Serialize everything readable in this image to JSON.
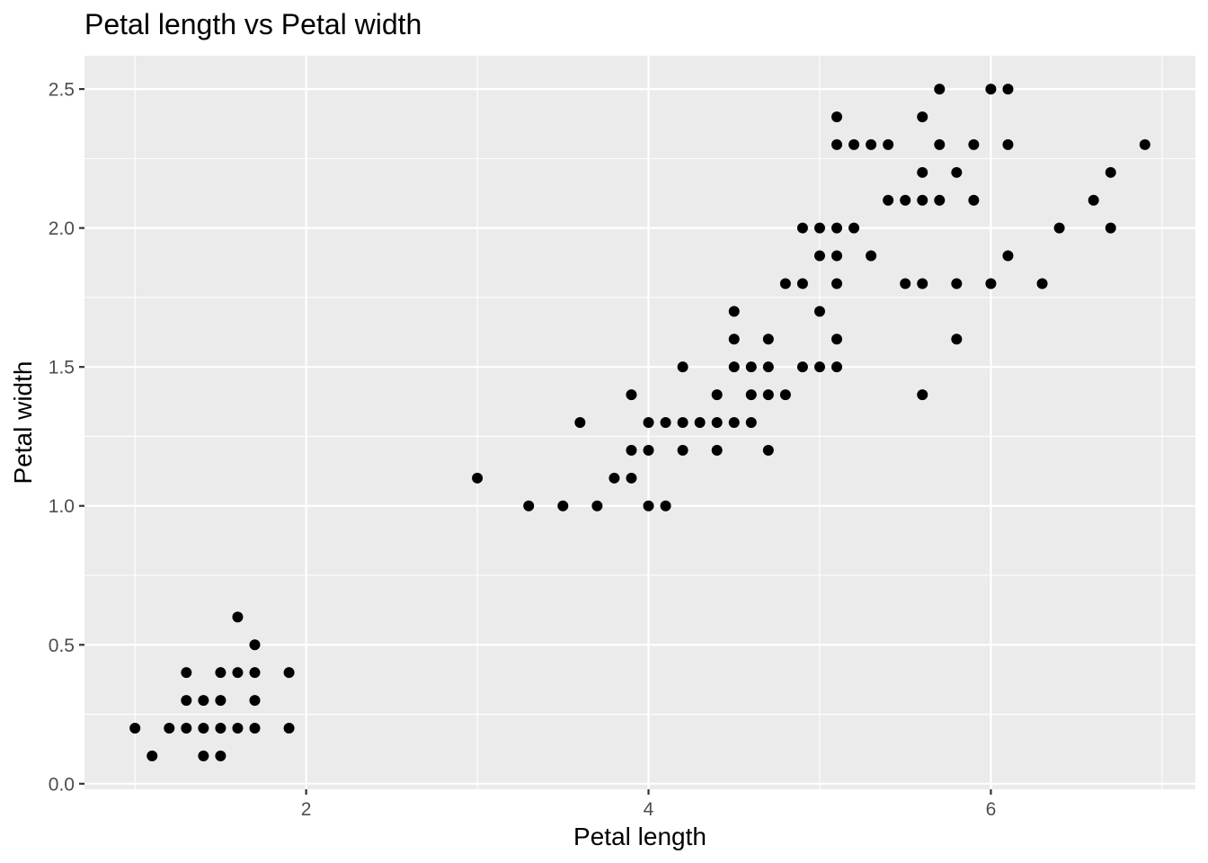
{
  "chart_data": {
    "type": "scatter",
    "title": "Petal length vs Petal width",
    "xlabel": "Petal length",
    "ylabel": "Petal width",
    "xlim": [
      0.705,
      7.195
    ],
    "ylim": [
      -0.02,
      2.62
    ],
    "x_ticks": [
      2,
      4,
      6
    ],
    "x_tick_labels": [
      "2",
      "4",
      "6"
    ],
    "y_ticks": [
      0,
      0.5,
      1,
      1.5,
      2,
      2.5
    ],
    "y_tick_labels": [
      "0.0",
      "0.5",
      "1.0",
      "1.5",
      "2.0",
      "2.5"
    ],
    "grid": true,
    "colors": {
      "panel": "#ebebeb",
      "grid": "#ffffff",
      "point": "#000000",
      "tick_text": "#4d4d4d"
    },
    "points": [
      [
        1.0,
        0.2
      ],
      [
        1.1,
        0.1
      ],
      [
        1.2,
        0.2
      ],
      [
        1.3,
        0.2
      ],
      [
        1.3,
        0.3
      ],
      [
        1.3,
        0.4
      ],
      [
        1.4,
        0.1
      ],
      [
        1.4,
        0.2
      ],
      [
        1.4,
        0.3
      ],
      [
        1.5,
        0.1
      ],
      [
        1.5,
        0.2
      ],
      [
        1.5,
        0.3
      ],
      [
        1.5,
        0.4
      ],
      [
        1.6,
        0.2
      ],
      [
        1.6,
        0.4
      ],
      [
        1.6,
        0.6
      ],
      [
        1.7,
        0.2
      ],
      [
        1.7,
        0.3
      ],
      [
        1.7,
        0.4
      ],
      [
        1.7,
        0.5
      ],
      [
        1.9,
        0.2
      ],
      [
        1.9,
        0.4
      ],
      [
        3.0,
        1.1
      ],
      [
        3.3,
        1.0
      ],
      [
        3.5,
        1.0
      ],
      [
        3.6,
        1.3
      ],
      [
        3.7,
        1.0
      ],
      [
        3.8,
        1.1
      ],
      [
        3.9,
        1.1
      ],
      [
        3.9,
        1.2
      ],
      [
        3.9,
        1.4
      ],
      [
        4.0,
        1.0
      ],
      [
        4.0,
        1.2
      ],
      [
        4.0,
        1.3
      ],
      [
        4.1,
        1.0
      ],
      [
        4.1,
        1.3
      ],
      [
        4.2,
        1.2
      ],
      [
        4.2,
        1.3
      ],
      [
        4.2,
        1.5
      ],
      [
        4.3,
        1.3
      ],
      [
        4.4,
        1.2
      ],
      [
        4.4,
        1.3
      ],
      [
        4.4,
        1.4
      ],
      [
        4.5,
        1.3
      ],
      [
        4.5,
        1.5
      ],
      [
        4.5,
        1.6
      ],
      [
        4.5,
        1.7
      ],
      [
        4.6,
        1.3
      ],
      [
        4.6,
        1.4
      ],
      [
        4.6,
        1.5
      ],
      [
        4.7,
        1.2
      ],
      [
        4.7,
        1.4
      ],
      [
        4.7,
        1.5
      ],
      [
        4.7,
        1.6
      ],
      [
        4.8,
        1.4
      ],
      [
        4.8,
        1.8
      ],
      [
        4.9,
        1.5
      ],
      [
        4.9,
        1.8
      ],
      [
        4.9,
        2.0
      ],
      [
        5.0,
        1.5
      ],
      [
        5.0,
        1.7
      ],
      [
        5.0,
        1.9
      ],
      [
        5.0,
        2.0
      ],
      [
        5.1,
        1.5
      ],
      [
        5.1,
        1.6
      ],
      [
        5.1,
        1.8
      ],
      [
        5.1,
        1.9
      ],
      [
        5.1,
        2.0
      ],
      [
        5.1,
        2.3
      ],
      [
        5.1,
        2.4
      ],
      [
        5.2,
        2.0
      ],
      [
        5.2,
        2.3
      ],
      [
        5.3,
        1.9
      ],
      [
        5.3,
        2.3
      ],
      [
        5.4,
        2.1
      ],
      [
        5.4,
        2.3
      ],
      [
        5.5,
        1.8
      ],
      [
        5.5,
        2.1
      ],
      [
        5.6,
        1.4
      ],
      [
        5.6,
        1.8
      ],
      [
        5.6,
        2.1
      ],
      [
        5.6,
        2.2
      ],
      [
        5.6,
        2.4
      ],
      [
        5.7,
        2.1
      ],
      [
        5.7,
        2.3
      ],
      [
        5.7,
        2.5
      ],
      [
        5.8,
        1.6
      ],
      [
        5.8,
        1.8
      ],
      [
        5.8,
        2.2
      ],
      [
        5.9,
        2.1
      ],
      [
        5.9,
        2.3
      ],
      [
        6.0,
        1.8
      ],
      [
        6.0,
        2.5
      ],
      [
        6.1,
        1.9
      ],
      [
        6.1,
        2.3
      ],
      [
        6.1,
        2.5
      ],
      [
        6.3,
        1.8
      ],
      [
        6.4,
        2.0
      ],
      [
        6.6,
        2.1
      ],
      [
        6.7,
        2.0
      ],
      [
        6.7,
        2.2
      ],
      [
        6.9,
        2.3
      ]
    ]
  }
}
